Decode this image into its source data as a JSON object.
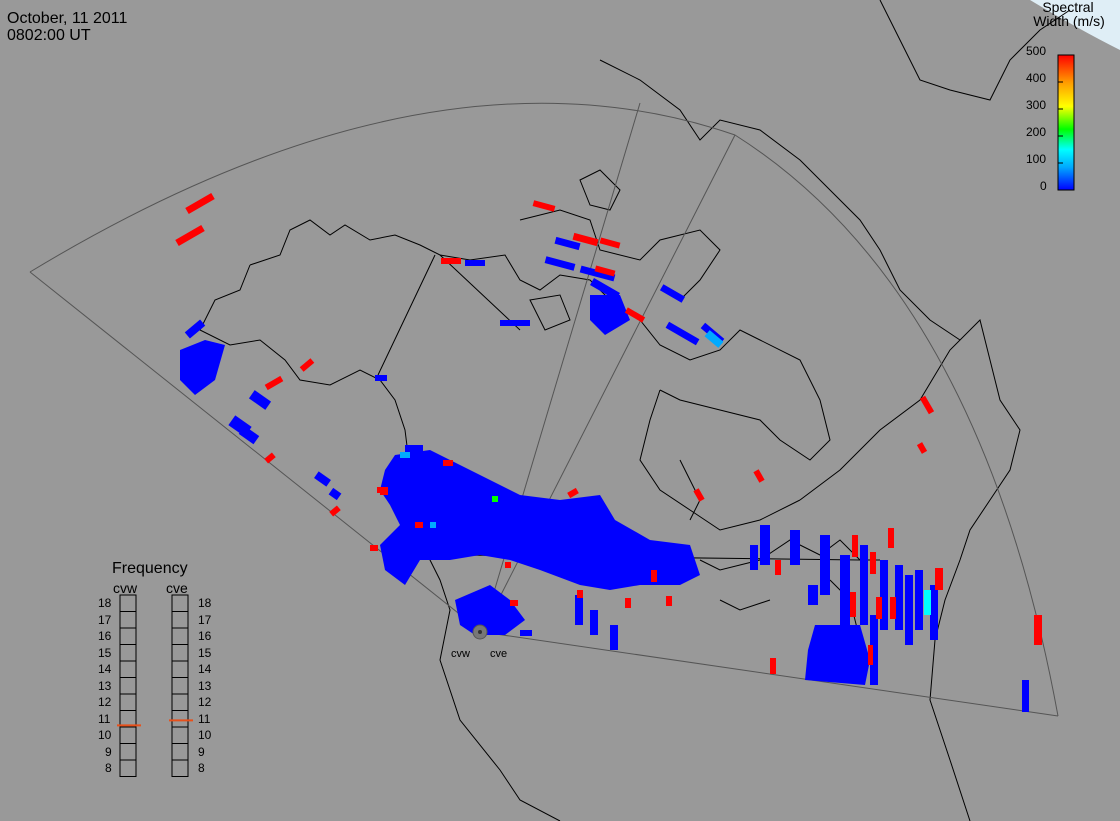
{
  "header": {
    "date": "October, 11 2011",
    "time": "0802:00 UT"
  },
  "colorbar": {
    "title_line1": "Spectral",
    "title_line2": "Width (m/s)",
    "ticks": [
      "500",
      "400",
      "300",
      "200",
      "100",
      "0"
    ],
    "range": [
      0,
      500
    ],
    "colors": [
      "#0000ff",
      "#00aaff",
      "#00ffff",
      "#00ff00",
      "#ffff00",
      "#ff9900",
      "#ff0000"
    ]
  },
  "frequency_panel": {
    "title": "Frequency",
    "radars": [
      {
        "name": "cvw",
        "value": 10.6
      },
      {
        "name": "cve",
        "value": 10.9
      }
    ],
    "scale": [
      "18",
      "17",
      "16",
      "15",
      "14",
      "13",
      "12",
      "11",
      "10",
      "9",
      "8"
    ]
  },
  "radar_sites": [
    {
      "name": "cvw"
    },
    {
      "name": "cve"
    }
  ],
  "colors": {
    "background": "#999999",
    "low_width": "#0000ff",
    "high_width": "#ff0000",
    "marker": "#e8501a"
  }
}
